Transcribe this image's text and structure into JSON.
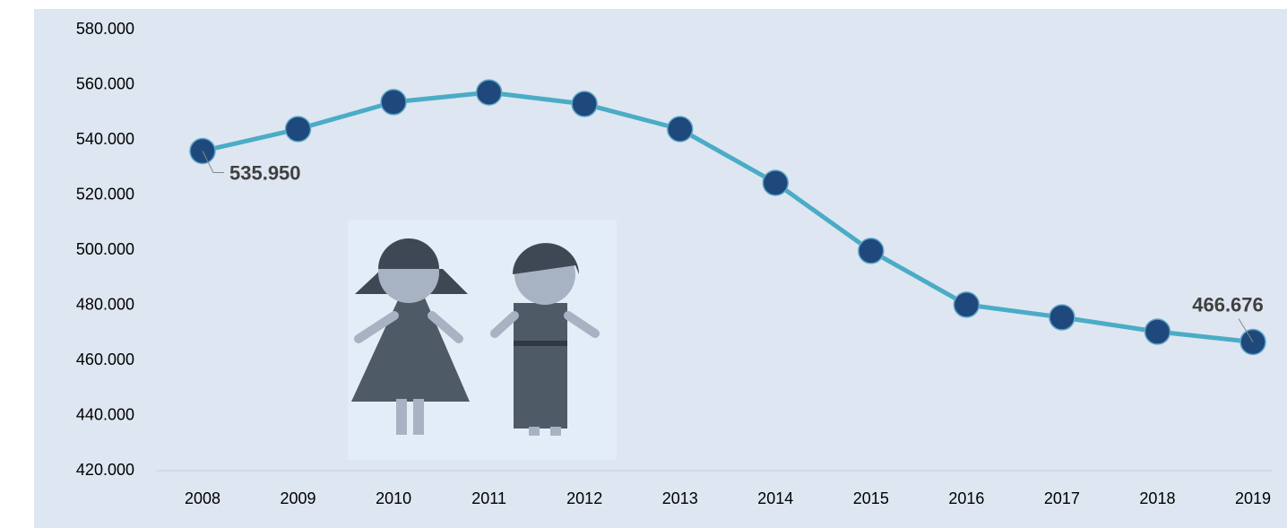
{
  "chart_data": {
    "type": "line",
    "categories": [
      "2008",
      "2009",
      "2010",
      "2011",
      "2012",
      "2013",
      "2014",
      "2015",
      "2016",
      "2017",
      "2018",
      "2019"
    ],
    "series": [
      {
        "color": "#4bacc6",
        "marker_color": "#1f497d",
        "values": [
          535950,
          543900,
          553700,
          557200,
          553000,
          543900,
          524400,
          499700,
          480200,
          475600,
          470400,
          466676
        ],
        "value_labels": [
          "535.950",
          null,
          null,
          null,
          null,
          null,
          null,
          null,
          null,
          null,
          null,
          "466.676"
        ]
      }
    ],
    "ylim": [
      420000,
      580000
    ],
    "yticks": [
      {
        "value": 420000,
        "label": "420.000"
      },
      {
        "value": 440000,
        "label": "440.000"
      },
      {
        "value": 460000,
        "label": "460.000"
      },
      {
        "value": 480000,
        "label": "480.000"
      },
      {
        "value": 500000,
        "label": "500.000"
      },
      {
        "value": 520000,
        "label": "520.000"
      },
      {
        "value": 540000,
        "label": "540.000"
      },
      {
        "value": 560000,
        "label": "560.000"
      },
      {
        "value": 580000,
        "label": "580.000"
      }
    ],
    "grid": false
  }
}
